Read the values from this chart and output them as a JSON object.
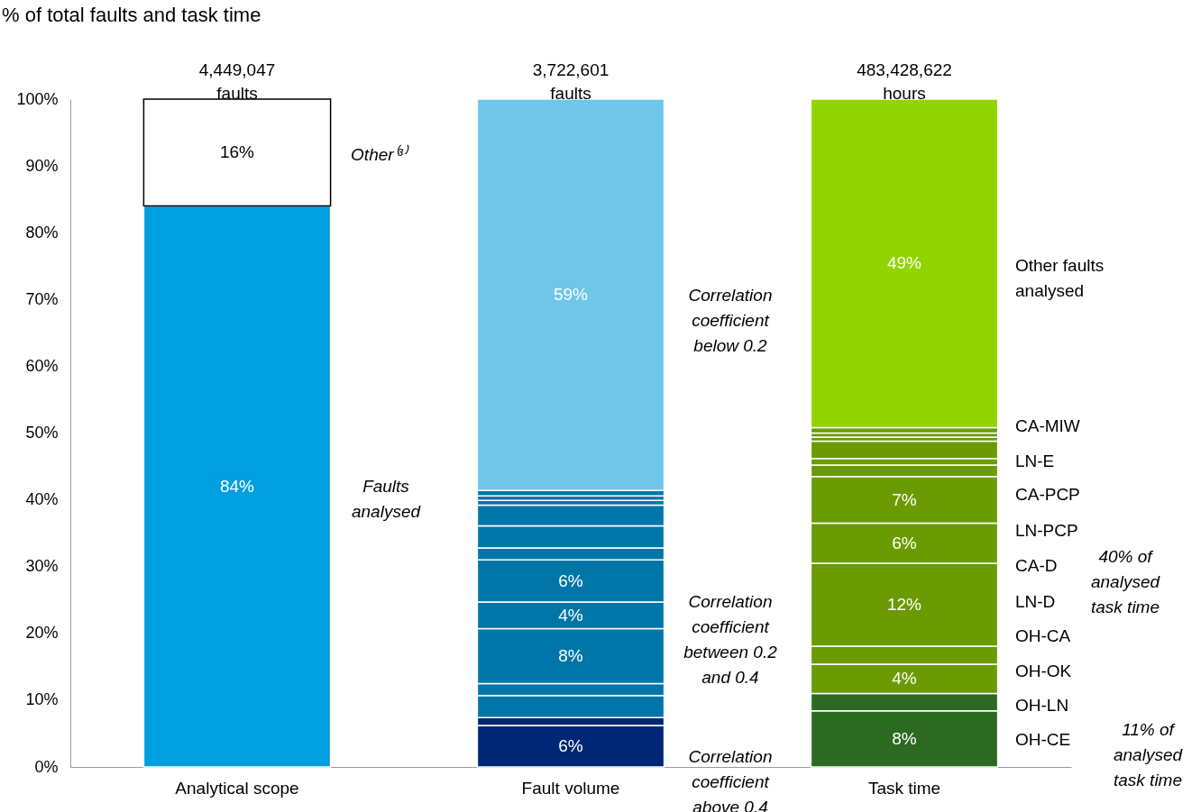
{
  "chart_data": {
    "type": "bar",
    "stacked": true,
    "title": "% of total faults and task time",
    "categories": [
      "Analytical scope",
      "Fault volume",
      "Task time"
    ],
    "series": [
      {
        "values": [
          84,
          6.2,
          8.4
        ],
        "colors": [
          "#009fdf",
          "#002776",
          "#2c6a22"
        ],
        "value_labels": [
          "84%",
          "6%",
          "8%"
        ]
      },
      {
        "values": [
          16,
          1.2,
          2.6
        ],
        "colors": [
          "#ffffff",
          "#002776",
          "#2c6a22"
        ],
        "value_labels": [
          "16%",
          null,
          null
        ]
      },
      {
        "values": [
          null,
          3.3,
          4.4
        ],
        "colors": [
          null,
          "#0076a8",
          "#6b9b00"
        ],
        "value_labels": [
          null,
          null,
          "4%"
        ]
      },
      {
        "values": [
          null,
          1.8,
          2.7
        ],
        "colors": [
          null,
          "#0076a8",
          "#6b9b00"
        ],
        "value_labels": [
          null,
          null,
          null
        ]
      },
      {
        "values": [
          null,
          8.2,
          12.4
        ],
        "colors": [
          null,
          "#0076a8",
          "#6b9b00"
        ],
        "value_labels": [
          null,
          "8%",
          "12%"
        ]
      },
      {
        "values": [
          null,
          4.0,
          6.0
        ],
        "colors": [
          null,
          "#0076a8",
          "#6b9b00"
        ],
        "value_labels": [
          null,
          "4%",
          "6%"
        ]
      },
      {
        "values": [
          null,
          6.3,
          7.0
        ],
        "colors": [
          null,
          "#0076a8",
          "#6b9b00"
        ],
        "value_labels": [
          null,
          "6%",
          "7%"
        ]
      },
      {
        "values": [
          null,
          1.8,
          1.7
        ],
        "colors": [
          null,
          "#0076a8",
          "#6b9b00"
        ],
        "value_labels": [
          null,
          null,
          null
        ]
      },
      {
        "values": [
          null,
          3.3,
          1.0
        ],
        "colors": [
          null,
          "#0076a8",
          "#6b9b00"
        ],
        "value_labels": [
          null,
          null,
          null
        ]
      },
      {
        "values": [
          null,
          3.1,
          2.6
        ],
        "colors": [
          null,
          "#0076a8",
          "#6b9b00"
        ],
        "value_labels": [
          null,
          null,
          null
        ]
      },
      {
        "values": [
          null,
          0.7,
          0.6
        ],
        "colors": [
          null,
          "#0076a8",
          "#6b9b00"
        ],
        "value_labels": [
          null,
          null,
          null
        ]
      },
      {
        "values": [
          null,
          0.7,
          0.6
        ],
        "colors": [
          null,
          "#0076a8",
          "#6b9b00"
        ],
        "value_labels": [
          null,
          null,
          null
        ]
      },
      {
        "values": [
          null,
          0.8,
          0.8
        ],
        "colors": [
          null,
          "#0076a8",
          "#6b9b00"
        ],
        "value_labels": [
          null,
          null,
          null
        ]
      },
      {
        "values": [
          null,
          58.6,
          49.2
        ],
        "colors": [
          null,
          "#6fc6e8",
          "#92d400"
        ],
        "value_labels": [
          null,
          "59%",
          "49%"
        ]
      }
    ],
    "ylim": [
      0,
      100
    ],
    "yticks": [
      {
        "value": 0,
        "label": "0%"
      },
      {
        "value": 10,
        "label": "10%"
      },
      {
        "value": 20,
        "label": "20%"
      },
      {
        "value": 30,
        "label": "30%"
      },
      {
        "value": 40,
        "label": "40%"
      },
      {
        "value": 50,
        "label": "50%"
      },
      {
        "value": 60,
        "label": "60%"
      },
      {
        "value": 70,
        "label": "70%"
      },
      {
        "value": 80,
        "label": "80%"
      },
      {
        "value": 90,
        "label": "90%"
      },
      {
        "value": 100,
        "label": "100%"
      }
    ],
    "annotations": [
      "Other⁽³⁾",
      "Faults\nanalysed",
      "Correlation\ncoefficient\nbelow 0.2",
      "Correlation\ncoefficient\nbetween 0.2\nand 0.4",
      "Correlation\ncoefficient\nabove 0.4",
      "Other faults\nanalysed",
      "CA-MIW",
      "LN-E",
      "CA-PCP",
      "LN-PCP",
      "CA-D",
      "LN-D",
      "OH-CA",
      "OH-OK",
      "OH-LN",
      "OH-CE",
      "40% of\nanalysed\ntask time",
      "11% of\nanalysed\ntask time",
      "4,449,047\nfaults",
      "3,722,601\nfaults",
      "483,428,622\nhours"
    ]
  }
}
